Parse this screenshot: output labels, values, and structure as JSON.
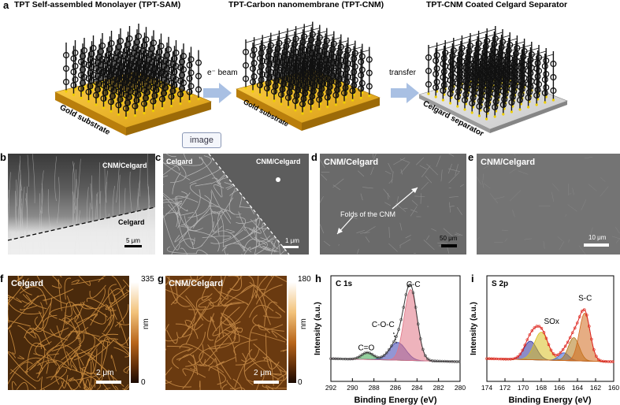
{
  "panel_a": {
    "letter": "a",
    "titles": [
      "TPT Self-assembled Monolayer (TPT-SAM)",
      "TPT-Carbon nanomembrane (TPT-CNM)",
      "TPT-CNM Coated Celgard Separator"
    ],
    "substrate_labels": [
      "Gold substrate",
      "Gold substrate",
      "Celgard separator"
    ],
    "arrow_1": "e⁻ beam",
    "arrow_2": "transfer"
  },
  "badge": "image",
  "panel_b": {
    "letter": "b",
    "top_label": "CNM/Celgard",
    "bottom_label": "Celgard",
    "scale": "5 μm"
  },
  "panel_c": {
    "letter": "c",
    "left_label": "Celgard",
    "right_label": "CNM/Celgard",
    "scale": "1 μm"
  },
  "panel_d": {
    "letter": "d",
    "label": "CNM/Celgard",
    "annotation": "Folds of the CNM",
    "scale": "50 μm"
  },
  "panel_e": {
    "letter": "e",
    "label": "CNM/Celgard",
    "scale": "10 μm"
  },
  "panel_f": {
    "letter": "f",
    "label": "Celgard",
    "scale": "2 μm",
    "cbar_max": "335",
    "cbar_min": "0",
    "cbar_unit": "nm"
  },
  "panel_g": {
    "letter": "g",
    "label": "CNM/Celgard",
    "scale": "2 μm",
    "cbar_max": "180",
    "cbar_min": "0",
    "cbar_unit": "nm"
  },
  "chart_data": [
    {
      "type": "line",
      "panel": "h",
      "title": "C 1s",
      "xlabel": "Binding Energy (eV)",
      "ylabel": "Intensity (a.u.)",
      "xlim": [
        292,
        280
      ],
      "x_ticks": [
        "292",
        "290",
        "288",
        "286",
        "284",
        "282",
        "280"
      ],
      "peaks": [
        {
          "name": "C=O",
          "center": 288.6,
          "height": 0.09,
          "width": 0.55,
          "color": "#3aa84a"
        },
        {
          "name": "C-O-C",
          "center": 285.8,
          "height": 0.23,
          "width": 0.75,
          "color": "#3a3fb0"
        },
        {
          "name": "C-C",
          "center": 284.6,
          "height": 0.92,
          "width": 0.6,
          "color": "#e07585"
        }
      ],
      "labels": [
        "C=O",
        "C-O-C",
        "C-C"
      ]
    },
    {
      "type": "line",
      "panel": "i",
      "title": "S 2p",
      "xlabel": "Binding Energy (eV)",
      "ylabel": "Intensity (a.u.)",
      "xlim": [
        174,
        160
      ],
      "x_ticks": [
        "174",
        "172",
        "170",
        "168",
        "166",
        "164",
        "162",
        "160"
      ],
      "peaks": [
        {
          "name": "SOx-1",
          "center": 169.2,
          "height": 0.24,
          "width": 0.7,
          "color": "#2e2e9a"
        },
        {
          "name": "SOx-2",
          "center": 168.0,
          "height": 0.36,
          "width": 0.75,
          "color": "#d8c020"
        },
        {
          "name": "S-1",
          "center": 165.5,
          "height": 0.1,
          "width": 0.55,
          "color": "#3a5fd0"
        },
        {
          "name": "S-C-1",
          "center": 164.4,
          "height": 0.3,
          "width": 0.6,
          "color": "#b07818"
        },
        {
          "name": "S-C-2",
          "center": 163.2,
          "height": 0.62,
          "width": 0.6,
          "color": "#d2691e"
        }
      ],
      "labels": [
        "S-C",
        "SOx"
      ]
    }
  ]
}
